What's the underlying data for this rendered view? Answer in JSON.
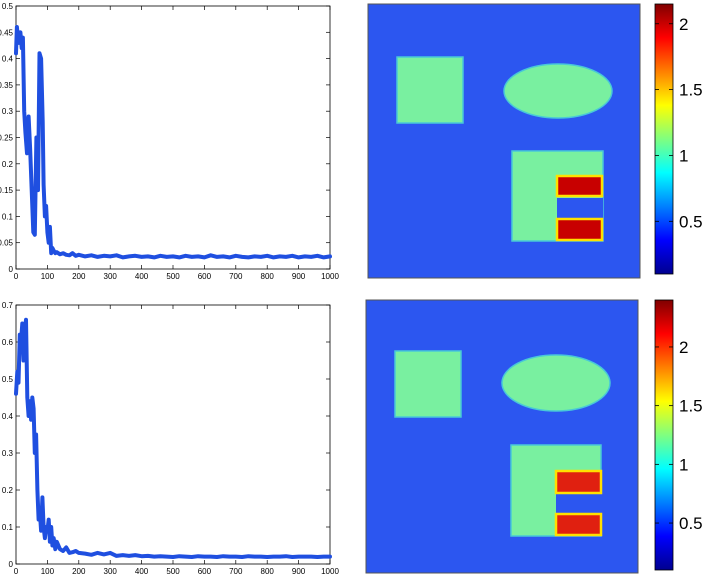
{
  "chart_data": [
    {
      "type": "line",
      "name_hint": "top convergence curve",
      "x_ticks": [
        "0",
        "100",
        "200",
        "300",
        "400",
        "500",
        "600",
        "700",
        "800",
        "900",
        "1000"
      ],
      "y_ticks": [
        "0",
        "0.05",
        "0.1",
        "0.15",
        "0.2",
        "0.25",
        "0.3",
        "0.35",
        "0.4",
        "0.45",
        "0.5"
      ],
      "xlim": [
        0,
        1000
      ],
      "ylim": [
        0,
        0.5
      ],
      "line_color": "#1f4fe0",
      "series": [
        {
          "x": [
            0,
            3,
            6,
            10,
            14,
            18,
            22,
            26,
            30,
            35,
            40,
            45,
            50,
            55,
            60,
            65,
            70,
            75,
            80,
            85,
            88,
            92,
            96,
            100,
            104,
            108,
            112,
            116,
            120,
            125,
            130,
            140,
            150,
            160,
            170,
            180,
            190,
            200,
            220,
            240,
            260,
            280,
            300,
            320,
            340,
            360,
            380,
            400,
            420,
            440,
            460,
            480,
            500,
            520,
            540,
            560,
            580,
            600,
            620,
            640,
            660,
            680,
            700,
            720,
            740,
            760,
            780,
            800,
            820,
            840,
            860,
            880,
            900,
            920,
            940,
            960,
            980,
            1000
          ],
          "y": [
            0.41,
            0.46,
            0.44,
            0.43,
            0.45,
            0.42,
            0.44,
            0.3,
            0.26,
            0.22,
            0.29,
            0.23,
            0.15,
            0.07,
            0.065,
            0.25,
            0.15,
            0.41,
            0.4,
            0.28,
            0.16,
            0.1,
            0.12,
            0.07,
            0.05,
            0.08,
            0.03,
            0.04,
            0.035,
            0.03,
            0.032,
            0.028,
            0.03,
            0.027,
            0.026,
            0.03,
            0.025,
            0.027,
            0.024,
            0.026,
            0.023,
            0.025,
            0.024,
            0.026,
            0.022,
            0.024,
            0.025,
            0.023,
            0.024,
            0.022,
            0.025,
            0.023,
            0.024,
            0.022,
            0.025,
            0.023,
            0.024,
            0.022,
            0.026,
            0.023,
            0.024,
            0.022,
            0.025,
            0.023,
            0.022,
            0.024,
            0.023,
            0.025,
            0.022,
            0.024,
            0.023,
            0.025,
            0.022,
            0.024,
            0.023,
            0.025,
            0.022,
            0.024
          ]
        }
      ]
    },
    {
      "type": "heatmap",
      "name_hint": "top reconstruction image",
      "colorbar_ticks": [
        "0.5",
        "1",
        "1.5",
        "2"
      ],
      "colorbar_range": [
        0.1,
        2.15
      ],
      "background_value": 0.18,
      "shapes": [
        {
          "kind": "rect",
          "value": 1.0
        },
        {
          "kind": "ellipse",
          "value": 1.0
        },
        {
          "kind": "rect",
          "value": 1.0
        },
        {
          "kind": "rect",
          "value": 2.05
        },
        {
          "kind": "rect",
          "value": 2.05
        }
      ]
    },
    {
      "type": "line",
      "name_hint": "bottom convergence curve",
      "x_ticks": [
        "0",
        "100",
        "200",
        "300",
        "400",
        "500",
        "600",
        "700",
        "800",
        "900",
        "1000"
      ],
      "y_ticks": [
        "0",
        "0.1",
        "0.2",
        "0.3",
        "0.4",
        "0.5",
        "0.6",
        "0.7"
      ],
      "xlim": [
        0,
        1000
      ],
      "ylim": [
        0,
        0.7
      ],
      "line_color": "#1f4fe0",
      "series": [
        {
          "x": [
            0,
            4,
            8,
            12,
            16,
            20,
            24,
            28,
            32,
            36,
            40,
            44,
            48,
            52,
            56,
            60,
            64,
            68,
            72,
            76,
            80,
            84,
            88,
            92,
            96,
            100,
            104,
            108,
            112,
            116,
            120,
            125,
            130,
            140,
            150,
            160,
            170,
            180,
            190,
            200,
            220,
            240,
            260,
            280,
            300,
            320,
            340,
            360,
            380,
            400,
            420,
            440,
            460,
            480,
            500,
            520,
            540,
            560,
            580,
            600,
            620,
            640,
            660,
            680,
            700,
            720,
            740,
            760,
            780,
            800,
            820,
            840,
            860,
            880,
            900,
            920,
            940,
            960,
            980,
            1000
          ],
          "y": [
            0.46,
            0.52,
            0.49,
            0.62,
            0.6,
            0.65,
            0.55,
            0.63,
            0.66,
            0.45,
            0.4,
            0.44,
            0.39,
            0.45,
            0.42,
            0.3,
            0.35,
            0.2,
            0.12,
            0.14,
            0.09,
            0.18,
            0.1,
            0.07,
            0.1,
            0.09,
            0.12,
            0.06,
            0.1,
            0.05,
            0.07,
            0.04,
            0.06,
            0.04,
            0.035,
            0.045,
            0.03,
            0.032,
            0.035,
            0.03,
            0.028,
            0.025,
            0.03,
            0.026,
            0.03,
            0.022,
            0.024,
            0.022,
            0.024,
            0.021,
            0.022,
            0.02,
            0.021,
            0.02,
            0.019,
            0.021,
            0.02,
            0.019,
            0.021,
            0.02,
            0.02,
            0.019,
            0.021,
            0.02,
            0.02,
            0.019,
            0.021,
            0.02,
            0.02,
            0.019,
            0.02,
            0.02,
            0.021,
            0.019,
            0.02,
            0.02,
            0.02,
            0.019,
            0.02,
            0.02
          ]
        }
      ]
    },
    {
      "type": "heatmap",
      "name_hint": "bottom reconstruction image",
      "colorbar_ticks": [
        "0.5",
        "1",
        "1.5",
        "2"
      ],
      "colorbar_range": [
        0.1,
        2.4
      ],
      "background_value": 0.18,
      "shapes": [
        {
          "kind": "rect",
          "value": 1.0
        },
        {
          "kind": "ellipse",
          "value": 1.0
        },
        {
          "kind": "rect",
          "value": 1.0
        },
        {
          "kind": "rect",
          "value": 2.1
        },
        {
          "kind": "rect",
          "value": 2.1
        }
      ]
    }
  ]
}
